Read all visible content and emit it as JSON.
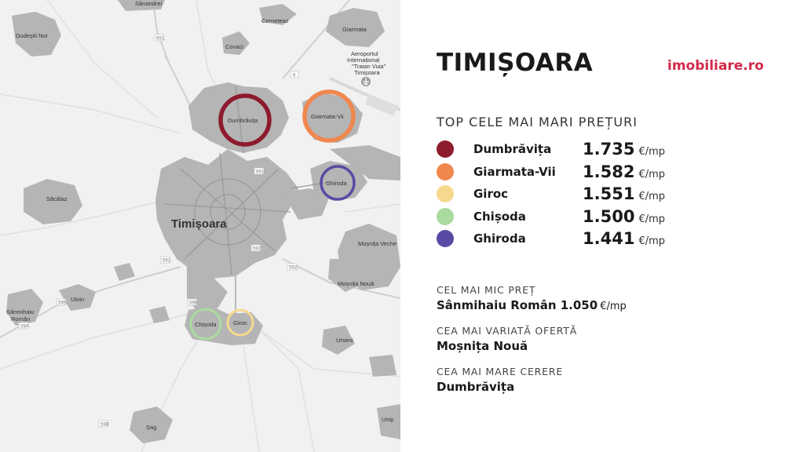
{
  "map": {
    "main_label": "Timișoara",
    "place_labels": [
      {
        "id": "sanandrei",
        "text": "Sânandrei"
      },
      {
        "id": "dudestii",
        "text": "Dudeștii Noi"
      },
      {
        "id": "cerneteaz",
        "text": "Cerneteaz"
      },
      {
        "id": "covaci",
        "text": "Covaci"
      },
      {
        "id": "giarmata",
        "text": "Giarmata"
      },
      {
        "id": "airport1",
        "text": "Aeroportul"
      },
      {
        "id": "airport2",
        "text": "Internațional"
      },
      {
        "id": "airport3",
        "text": "\"Traian Vuia\""
      },
      {
        "id": "airport4",
        "text": "Timișoara"
      },
      {
        "id": "sacalaz",
        "text": "Săcălaz"
      },
      {
        "id": "mosnita_veche",
        "text": "Moșnița Veche"
      },
      {
        "id": "mosnita_noua",
        "text": "Moșnița Nouă"
      },
      {
        "id": "utvin",
        "text": "Utvin"
      },
      {
        "id": "sanmihaiu1",
        "text": "Sânmihaiu"
      },
      {
        "id": "sanmihaiu2",
        "text": "Român"
      },
      {
        "id": "urseni",
        "text": "Urseni"
      },
      {
        "id": "sag",
        "text": "Șag"
      },
      {
        "id": "unip",
        "text": "Unip"
      }
    ],
    "road_numbers": [
      "691",
      "691",
      "6",
      "592",
      "591",
      "592",
      "59B",
      "595",
      "59A",
      "59B"
    ],
    "circles": [
      {
        "label": "Dumbrăvița",
        "color": "#8e1b2e"
      },
      {
        "label": "Giarmata-Vii",
        "color": "#f0874e"
      },
      {
        "label": "Ghiroda",
        "color": "#5b4aa3"
      },
      {
        "label": "Chișoda",
        "color": "#aadb9e"
      },
      {
        "label": "Giroc",
        "color": "#f7d98e"
      }
    ]
  },
  "panel": {
    "city_title": "TIMIȘOARA",
    "logo_text": "imobiliare.ro",
    "brand_color": "#d12a4a",
    "top_title": "TOP CELE MAI MARI PREȚURI",
    "ranking": [
      {
        "name": "Dumbrăvița",
        "price": "1.735",
        "unit": "€/mp",
        "color": "#8e1b2e"
      },
      {
        "name": "Giarmata-Vii",
        "price": "1.582",
        "unit": "€/mp",
        "color": "#f0874e"
      },
      {
        "name": "Giroc",
        "price": "1.551",
        "unit": "€/mp",
        "color": "#f7d98e"
      },
      {
        "name": "Chișoda",
        "price": "1.500",
        "unit": "€/mp",
        "color": "#aadb9e"
      },
      {
        "name": "Ghiroda",
        "price": "1.441",
        "unit": "€/mp",
        "color": "#5b4aa3"
      }
    ],
    "lowest": {
      "label": "CEL MAI MIC PREȚ",
      "value": "Sânmihaiu Român 1.050",
      "unit": "€/mp"
    },
    "varied": {
      "label": "CEA MAI VARIATĂ OFERTĂ",
      "value": "Moșnița Nouă"
    },
    "demand": {
      "label": "CEA MAI MARE CERERE",
      "value": "Dumbrăvița"
    }
  }
}
